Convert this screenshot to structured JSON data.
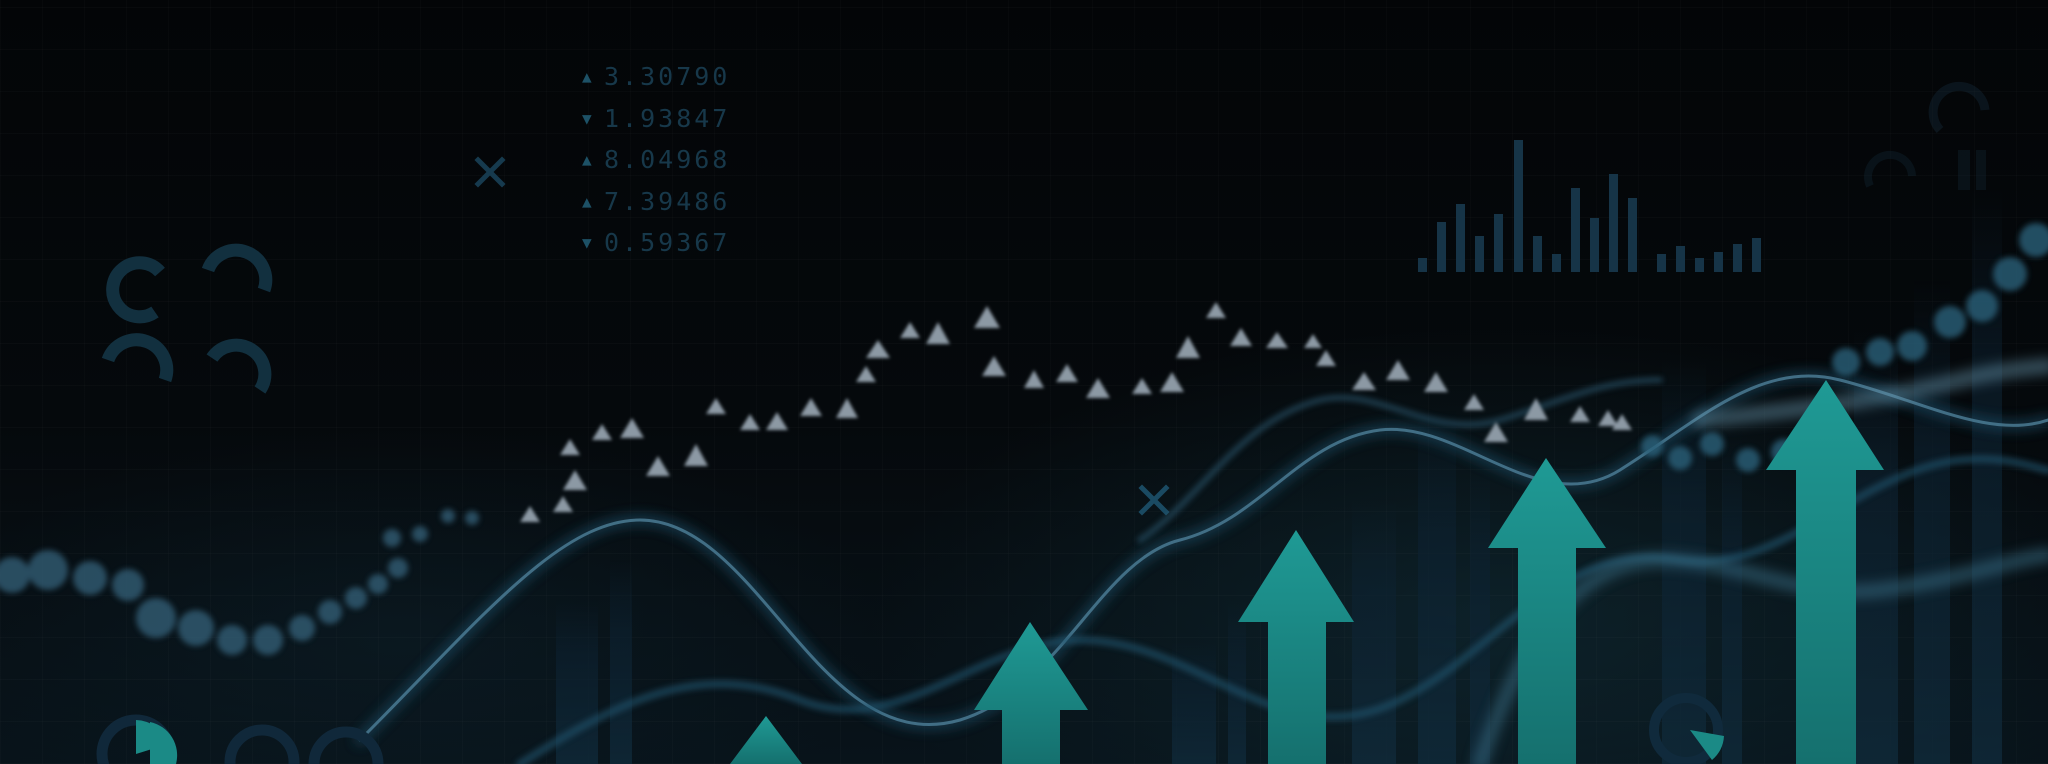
{
  "ticker": {
    "items": [
      {
        "direction": "up",
        "glyph": "▲",
        "value": "3.30790"
      },
      {
        "direction": "down",
        "glyph": "▼",
        "value": "1.93847"
      },
      {
        "direction": "up",
        "glyph": "▲",
        "value": "8.04968"
      },
      {
        "direction": "up",
        "glyph": "▲",
        "value": "7.39486"
      },
      {
        "direction": "down",
        "glyph": "▼",
        "value": "0.59367"
      }
    ]
  },
  "colors": {
    "background": "#05080b",
    "teal_arrow": "#1a8a86",
    "triangle_marker": "#8c99a4",
    "ticker_text": "#17384a",
    "glow_line": "#5e8ca3",
    "bokeh": "#3a6f8a"
  },
  "icons": [
    "close-x-icon",
    "ring-gauge-icon",
    "pie-gauge-icon",
    "up-arrow-icon"
  ]
}
